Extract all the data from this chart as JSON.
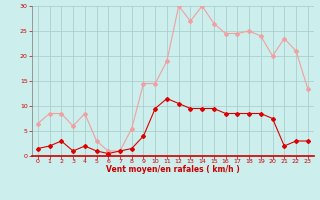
{
  "hours": [
    0,
    1,
    2,
    3,
    4,
    5,
    6,
    7,
    8,
    9,
    10,
    11,
    12,
    13,
    14,
    15,
    16,
    17,
    18,
    19,
    20,
    21,
    22,
    23
  ],
  "wind_avg": [
    1.5,
    2,
    3,
    1,
    2,
    1,
    0.5,
    1,
    1.5,
    4,
    9.5,
    11.5,
    10.5,
    9.5,
    9.5,
    9.5,
    8.5,
    8.5,
    8.5,
    8.5,
    7.5,
    2,
    3,
    3
  ],
  "wind_gust": [
    6.5,
    8.5,
    8.5,
    6,
    8.5,
    3,
    1,
    1,
    5.5,
    14.5,
    14.5,
    19,
    30,
    27,
    30,
    26.5,
    24.5,
    24.5,
    25,
    24,
    20,
    23.5,
    21,
    13.5
  ],
  "avg_color": "#dd0000",
  "gust_color": "#f0a0a0",
  "bg_color": "#cceeed",
  "grid_color": "#aacfcc",
  "axis_color": "#cc0000",
  "text_color": "#cc0000",
  "xlabel": "Vent moyen/en rafales ( km/h )",
  "ylim": [
    0,
    30
  ],
  "yticks": [
    0,
    5,
    10,
    15,
    20,
    25,
    30
  ],
  "xticks": [
    0,
    1,
    2,
    3,
    4,
    5,
    6,
    7,
    8,
    9,
    10,
    11,
    12,
    13,
    14,
    15,
    16,
    17,
    18,
    19,
    20,
    21,
    22,
    23
  ]
}
